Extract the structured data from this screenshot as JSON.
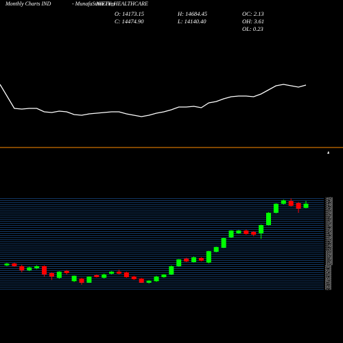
{
  "header": {
    "left": "Monthly Charts IND",
    "site": "- MunafaSutra.com",
    "symbol": "NIFTY_HEALTHCARE",
    "stats": [
      "O: 14173.15",
      "H: 14684.45",
      "OC: 2.13",
      "C: 14474.90",
      "L: 14140.40",
      "OH: 3.61",
      "OL: 0.23"
    ]
  },
  "chart_data": [
    {
      "type": "line",
      "color": "#ffffff",
      "ylim": [
        0,
        215
      ],
      "reference_line": 0,
      "reference_color": "#ff8c00",
      "values": [
        92,
        57,
        56,
        57,
        57,
        52,
        51,
        53,
        52,
        48,
        47,
        49,
        50,
        51,
        52,
        52,
        49,
        47,
        45,
        47,
        50,
        52,
        55,
        59,
        59,
        60,
        58,
        65,
        67,
        71,
        74,
        75,
        75,
        74,
        78,
        84,
        90,
        92,
        90,
        88,
        91
      ]
    },
    {
      "type": "candlestick",
      "up_color": "#00ff00",
      "down_color": "#ff0000",
      "grid_color": "#1e5aa0",
      "ylim": [
        4324,
        29324
      ],
      "yticks": [
        8250,
        8400,
        8550,
        8700,
        8850,
        9000,
        9150,
        9300,
        9450,
        9600,
        9750,
        9900,
        10050,
        10200,
        10350,
        10500,
        10650,
        10800,
        10950,
        11100,
        11250,
        11400,
        11550,
        11700,
        11850,
        12000,
        12150,
        12300,
        12450,
        12600,
        12750,
        12900,
        13050,
        13200,
        13350,
        13500,
        13650,
        13800,
        13950,
        14100,
        14250,
        14400,
        14550,
        14700,
        14850
      ],
      "open": [
        9980,
        10120,
        9920,
        9620,
        9780,
        9930,
        9420,
        9070,
        9580,
        8820,
        9020,
        8720,
        9270,
        9080,
        9370,
        9520,
        9470,
        9170,
        9020,
        8720,
        8820,
        9120,
        9320,
        9920,
        10470,
        10220,
        10520,
        10180,
        10980,
        11270,
        12020,
        12320,
        12520,
        12420,
        12320,
        12920,
        13820,
        14470,
        14670,
        14520,
        14173.15
      ],
      "high": [
        10160,
        10170,
        10020,
        9880,
        9990,
        9980,
        9480,
        9560,
        9640,
        9240,
        9070,
        9180,
        9320,
        9380,
        9560,
        9660,
        9520,
        9220,
        9060,
        8900,
        9220,
        9340,
        9980,
        10440,
        10540,
        10620,
        10580,
        11040,
        11340,
        12000,
        12540,
        12560,
        12600,
        12480,
        12960,
        13860,
        14500,
        14780,
        14860,
        14600,
        14684.45
      ],
      "low": [
        9930,
        9880,
        9480,
        9560,
        9700,
        9170,
        8920,
        9000,
        9320,
        8770,
        8580,
        8700,
        9100,
        9030,
        9330,
        9330,
        9080,
        8920,
        8700,
        8650,
        8780,
        9080,
        9280,
        9880,
        10230,
        10180,
        10280,
        10120,
        10920,
        11240,
        11980,
        12280,
        12220,
        12100,
        11920,
        12880,
        13760,
        14420,
        14280,
        13820,
        14140.4
      ],
      "close": [
        10110,
        9930,
        9620,
        9830,
        9920,
        9320,
        9170,
        9520,
        9420,
        9220,
        8720,
        9170,
        9130,
        9320,
        9520,
        9380,
        9120,
        8970,
        8720,
        8870,
        9170,
        9320,
        9920,
        10420,
        10270,
        10570,
        10320,
        11020,
        11320,
        11970,
        12520,
        12520,
        12270,
        12220,
        12920,
        13820,
        14470,
        14720,
        14320,
        14120,
        14474.9
      ]
    }
  ]
}
